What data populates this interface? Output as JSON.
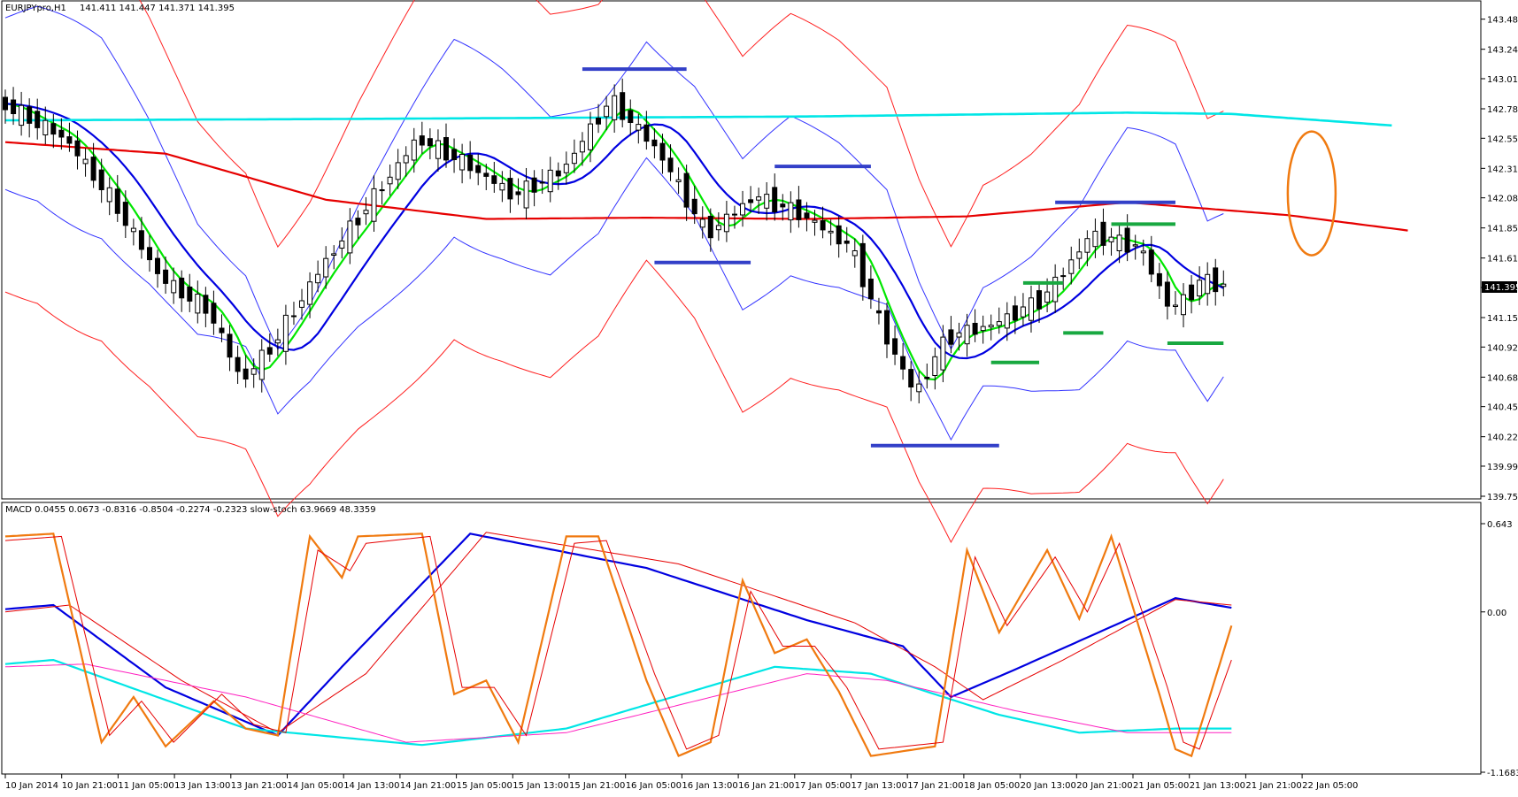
{
  "chart_data": [
    {
      "type": "candlestick",
      "symbol": "EURJPYpro,H1",
      "ohlc_header": "141.411 141.447 141.371 141.395",
      "current_price_label": "141.395",
      "ylim": [
        139.755,
        143.595
      ],
      "y_ticks": [
        "143.480",
        "143.245",
        "143.015",
        "142.780",
        "142.550",
        "142.315",
        "142.085",
        "141.850",
        "141.615",
        "141.385",
        "141.150",
        "140.920",
        "140.685",
        "140.455",
        "140.220",
        "139.990",
        "139.755"
      ],
      "colors": {
        "bull_body": "#ffffff",
        "bear_body": "#000000",
        "ma_fast": "#00e600",
        "ma_mid": "#0000e0",
        "ma_slow": "#e60000",
        "ma_long": "#00e6e6",
        "bands_inner": "#3333ff",
        "bands_outer": "#ff2020",
        "levels_blue": "#3340c8",
        "levels_green": "#18a840",
        "ellipse": "#f07a10"
      },
      "cyan_line": [
        [
          0,
          142.69
        ],
        [
          40,
          142.7
        ],
        [
          100,
          142.72
        ],
        [
          140,
          142.75
        ],
        [
          153,
          142.74
        ],
        [
          173,
          142.65
        ]
      ],
      "red_slow_ma": [
        [
          0,
          142.52
        ],
        [
          20,
          142.43
        ],
        [
          40,
          142.07
        ],
        [
          60,
          141.92
        ],
        [
          80,
          141.93
        ],
        [
          100,
          141.92
        ],
        [
          120,
          141.94
        ],
        [
          140,
          142.05
        ],
        [
          160,
          141.95
        ],
        [
          175,
          141.83
        ]
      ],
      "blue_level_lines": [
        {
          "x1": 72,
          "x2": 85,
          "y": 143.09
        },
        {
          "x1": 96,
          "x2": 108,
          "y": 142.33
        },
        {
          "x1": 81,
          "x2": 93,
          "y": 141.58
        },
        {
          "x1": 131,
          "x2": 146,
          "y": 142.05
        },
        {
          "x1": 108,
          "x2": 124,
          "y": 140.15
        }
      ],
      "green_level_lines": [
        {
          "x1": 138,
          "x2": 146,
          "y": 141.88
        },
        {
          "x1": 127,
          "x2": 132,
          "y": 141.42
        },
        {
          "x1": 132,
          "x2": 137,
          "y": 141.03
        },
        {
          "x1": 123,
          "x2": 129,
          "y": 140.8
        },
        {
          "x1": 145,
          "x2": 152,
          "y": 140.95
        }
      ]
    },
    {
      "type": "line",
      "indicator_header": "MACD 0.0455 0.0673 -0.8316 -0.8504 -0.2274 -0.2323 slow-stoch 63.9669 48.3359",
      "ylim": [
        -1.1683,
        0.643
      ],
      "y_ticks": [
        "0.643",
        "0.00",
        "-1.1683"
      ],
      "series": [
        {
          "color": "#0000e0",
          "points": [
            [
              0,
              0.02
            ],
            [
              6,
              0.05
            ],
            [
              20,
              -0.55
            ],
            [
              34,
              -0.9
            ],
            [
              42,
              -0.4
            ],
            [
              58,
              0.57
            ],
            [
              80,
              0.32
            ],
            [
              100,
              -0.06
            ],
            [
              112,
              -0.25
            ],
            [
              118,
              -0.62
            ],
            [
              126,
              -0.42
            ],
            [
              146,
              0.1
            ],
            [
              153,
              0.03
            ]
          ]
        },
        {
          "color": "#e60000",
          "points": [
            [
              0,
              0.0
            ],
            [
              8,
              0.05
            ],
            [
              22,
              -0.5
            ],
            [
              34,
              -0.88
            ],
            [
              45,
              -0.45
            ],
            [
              60,
              0.58
            ],
            [
              84,
              0.35
            ],
            [
              106,
              -0.08
            ],
            [
              116,
              -0.4
            ],
            [
              122,
              -0.64
            ],
            [
              132,
              -0.35
            ],
            [
              146,
              0.09
            ],
            [
              153,
              0.05
            ]
          ]
        },
        {
          "color": "#00e6e6",
          "points": [
            [
              0,
              -0.38
            ],
            [
              6,
              -0.35
            ],
            [
              30,
              -0.85
            ],
            [
              52,
              -0.97
            ],
            [
              70,
              -0.85
            ],
            [
              96,
              -0.4
            ],
            [
              108,
              -0.45
            ],
            [
              124,
              -0.75
            ],
            [
              134,
              -0.88
            ],
            [
              146,
              -0.85
            ],
            [
              153,
              -0.85
            ]
          ]
        },
        {
          "color": "#ff20c0",
          "points": [
            [
              0,
              -0.4
            ],
            [
              10,
              -0.38
            ],
            [
              30,
              -0.62
            ],
            [
              50,
              -0.95
            ],
            [
              70,
              -0.88
            ],
            [
              100,
              -0.45
            ],
            [
              110,
              -0.5
            ],
            [
              126,
              -0.72
            ],
            [
              140,
              -0.88
            ],
            [
              153,
              -0.88
            ]
          ]
        },
        {
          "color": "#f07a10",
          "points": [
            [
              0,
              0.55
            ],
            [
              6,
              0.57
            ],
            [
              12,
              -0.95
            ],
            [
              16,
              -0.62
            ],
            [
              20,
              -0.98
            ],
            [
              26,
              -0.65
            ],
            [
              30,
              -0.85
            ],
            [
              34,
              -0.9
            ],
            [
              38,
              0.55
            ],
            [
              42,
              0.25
            ],
            [
              44,
              0.55
            ],
            [
              52,
              0.57
            ],
            [
              56,
              -0.6
            ],
            [
              60,
              -0.5
            ],
            [
              64,
              -0.95
            ],
            [
              70,
              0.55
            ],
            [
              74,
              0.55
            ],
            [
              80,
              -0.5
            ],
            [
              84,
              -1.05
            ],
            [
              88,
              -0.95
            ],
            [
              92,
              0.23
            ],
            [
              96,
              -0.3
            ],
            [
              100,
              -0.2
            ],
            [
              104,
              -0.58
            ],
            [
              108,
              -1.05
            ],
            [
              116,
              -0.98
            ],
            [
              120,
              0.45
            ],
            [
              124,
              -0.15
            ],
            [
              130,
              0.45
            ],
            [
              134,
              -0.05
            ],
            [
              138,
              0.55
            ],
            [
              144,
              -0.6
            ],
            [
              146,
              -1.0
            ],
            [
              148,
              -1.05
            ],
            [
              153,
              -0.1
            ]
          ]
        },
        {
          "color": "#e60000",
          "points": [
            [
              0,
              0.52
            ],
            [
              7,
              0.55
            ],
            [
              13,
              -0.9
            ],
            [
              17,
              -0.65
            ],
            [
              21,
              -0.95
            ],
            [
              27,
              -0.6
            ],
            [
              31,
              -0.82
            ],
            [
              35,
              -0.88
            ],
            [
              39,
              0.45
            ],
            [
              43,
              0.3
            ],
            [
              45,
              0.5
            ],
            [
              53,
              0.55
            ],
            [
              57,
              -0.55
            ],
            [
              61,
              -0.55
            ],
            [
              65,
              -0.9
            ],
            [
              71,
              0.5
            ],
            [
              75,
              0.52
            ],
            [
              81,
              -0.45
            ],
            [
              85,
              -1.0
            ],
            [
              89,
              -0.9
            ],
            [
              93,
              0.15
            ],
            [
              97,
              -0.25
            ],
            [
              101,
              -0.25
            ],
            [
              105,
              -0.55
            ],
            [
              109,
              -1.0
            ],
            [
              117,
              -0.95
            ],
            [
              121,
              0.4
            ],
            [
              125,
              -0.1
            ],
            [
              131,
              0.4
            ],
            [
              135,
              0.0
            ],
            [
              139,
              0.5
            ],
            [
              145,
              -0.55
            ],
            [
              147,
              -0.95
            ],
            [
              149,
              -1.0
            ],
            [
              153,
              -0.35
            ]
          ]
        }
      ]
    }
  ],
  "x_axis": {
    "labels": [
      "10 Jan 2014",
      "10 Jan 21:00",
      "11 Jan 05:00",
      "13 Jan 13:00",
      "13 Jan 21:00",
      "14 Jan 05:00",
      "14 Jan 13:00",
      "14 Jan 21:00",
      "15 Jan 05:00",
      "15 Jan 13:00",
      "15 Jan 21:00",
      "16 Jan 05:00",
      "16 Jan 13:00",
      "16 Jan 21:00",
      "17 Jan 05:00",
      "17 Jan 13:00",
      "17 Jan 21:00",
      "18 Jan 05:00",
      "20 Jan 13:00",
      "20 Jan 21:00",
      "21 Jan 05:00",
      "21 Jan 13:00",
      "21 Jan 21:00",
      "22 Jan 05:00"
    ]
  }
}
